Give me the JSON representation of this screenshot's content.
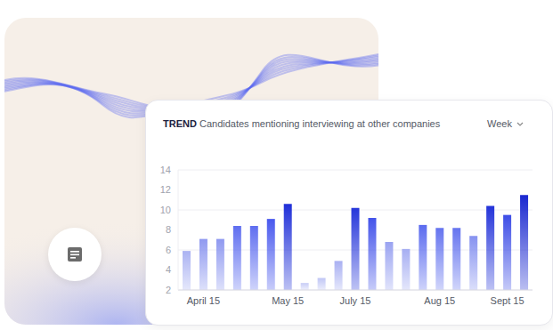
{
  "header": {
    "badge": "TREND",
    "period": "Week"
  },
  "chart_data": {
    "type": "bar",
    "title": "Candidates mentioning interviewing at other companies",
    "categories": [
      null,
      "April 15",
      null,
      null,
      null,
      null,
      "May 15",
      null,
      null,
      null,
      "July 15",
      null,
      null,
      null,
      null,
      "Aug 15",
      null,
      null,
      null,
      "Sept 15",
      null
    ],
    "values": [
      5.9,
      7.1,
      7.1,
      8.4,
      8.4,
      9.1,
      10.6,
      2.7,
      3.2,
      4.9,
      10.2,
      9.2,
      6.8,
      6.1,
      8.5,
      8.2,
      8.2,
      7.4,
      10.4,
      9.5,
      11.5
    ],
    "colors": [
      "#aab2f2",
      "#8f99f0",
      "#8f99f0",
      "#5f6ef0",
      "#5f6ef0",
      "#4858ee",
      "#1f2fd8",
      "#c8cdf6",
      "#c0c6f5",
      "#a9b0f2",
      "#2636da",
      "#4353ea",
      "#9aa3f1",
      "#a6aef2",
      "#5b6bef",
      "#6574ef",
      "#6574ef",
      "#8692f0",
      "#2333d9",
      "#3d4de6",
      "#1a28d0"
    ],
    "ylim": [
      2,
      14
    ],
    "yticks": [
      2,
      4,
      6,
      8,
      10,
      12,
      14
    ],
    "grid": true
  }
}
